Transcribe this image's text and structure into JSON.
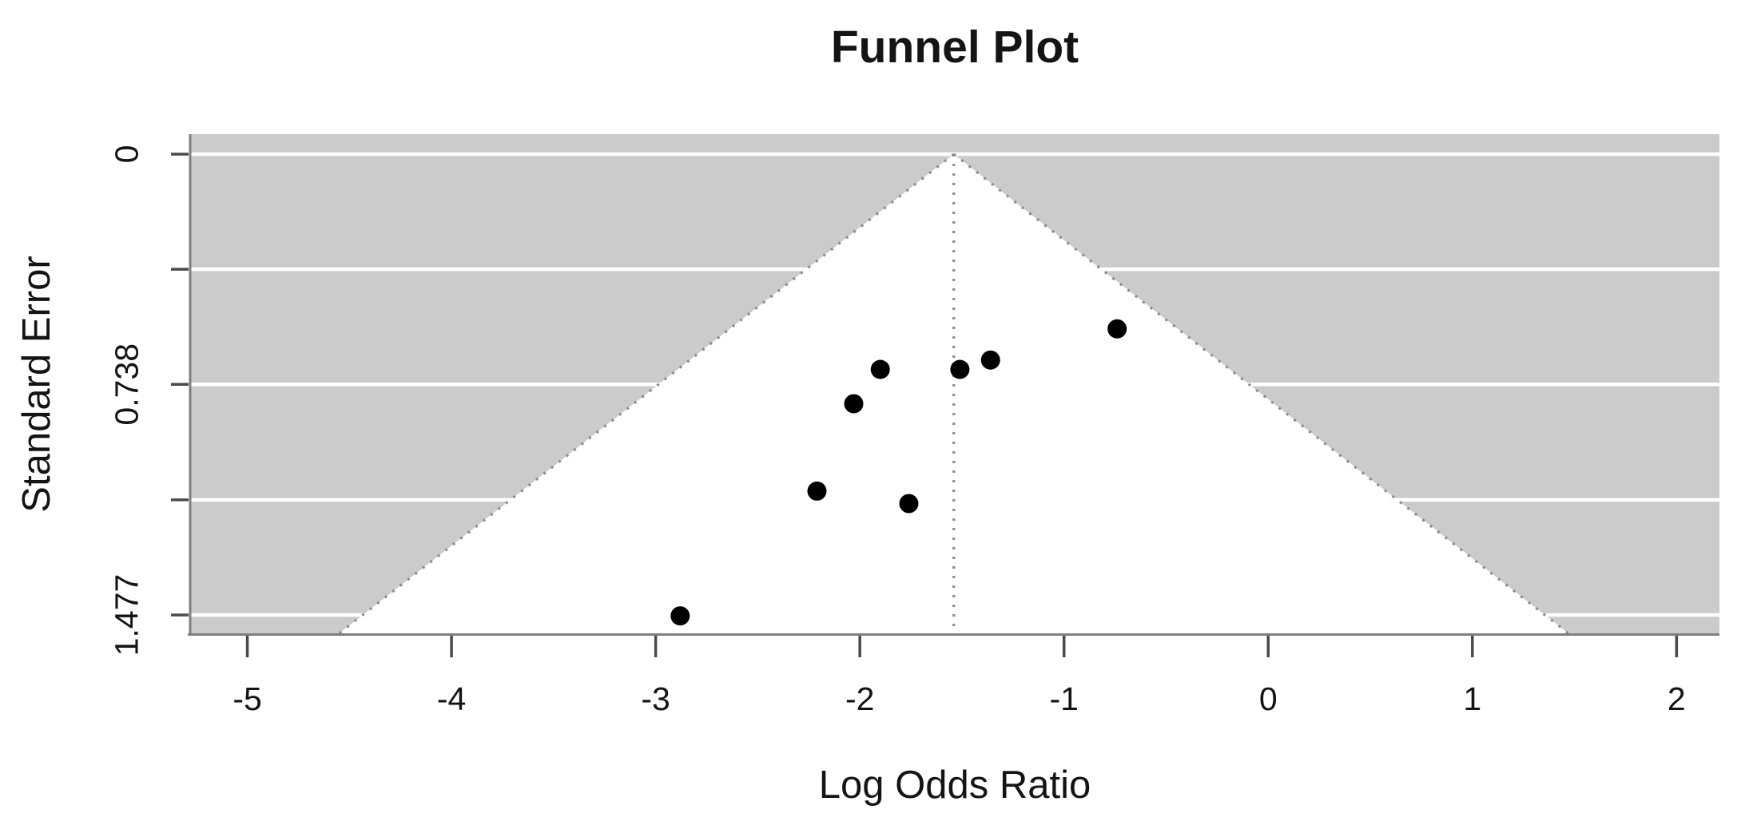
{
  "chart_data": {
    "type": "scatter",
    "title": "Funnel Plot",
    "xlabel": "Log Odds Ratio",
    "ylabel": "Standard Error",
    "legend": "none",
    "grid": true,
    "xlim": [
      -5.28,
      2.21
    ],
    "ylim": [
      1.536,
      -0.064
    ],
    "x_ticks": [
      {
        "value": -5,
        "label": "-5"
      },
      {
        "value": -4,
        "label": "-4"
      },
      {
        "value": -3,
        "label": "-3"
      },
      {
        "value": -2,
        "label": "-2"
      },
      {
        "value": -1,
        "label": "-1"
      },
      {
        "value": 0,
        "label": "0"
      },
      {
        "value": 1,
        "label": "1"
      },
      {
        "value": 2,
        "label": "2"
      }
    ],
    "y_ticks": [
      {
        "value": 0,
        "label": "0"
      },
      {
        "value": 0.369,
        "label": ""
      },
      {
        "value": 0.738,
        "label": "0.738"
      },
      {
        "value": 1.108,
        "label": ""
      },
      {
        "value": 1.477,
        "label": "1.477"
      }
    ],
    "funnel": {
      "estimate": -1.54,
      "z": 1.96,
      "se_top": 0,
      "se_bottom": 1.536
    },
    "points": [
      {
        "x": -0.74,
        "se": 0.56
      },
      {
        "x": -1.36,
        "se": 0.66
      },
      {
        "x": -1.51,
        "se": 0.69
      },
      {
        "x": -1.9,
        "se": 0.69
      },
      {
        "x": -2.03,
        "se": 0.8
      },
      {
        "x": -2.21,
        "se": 1.08
      },
      {
        "x": -1.76,
        "se": 1.12
      },
      {
        "x": -2.88,
        "se": 1.48
      }
    ],
    "colors": {
      "background": "#ffffff",
      "shade": "#cbcbcb",
      "funnel_fill": "#ffffff",
      "gridline": "#ffffff",
      "dotted_line": "#8a8a8a",
      "axis_line": "#7f7f7f",
      "tick_mark": "#4a4a4a",
      "text": "#141414",
      "point": "#000000"
    }
  }
}
